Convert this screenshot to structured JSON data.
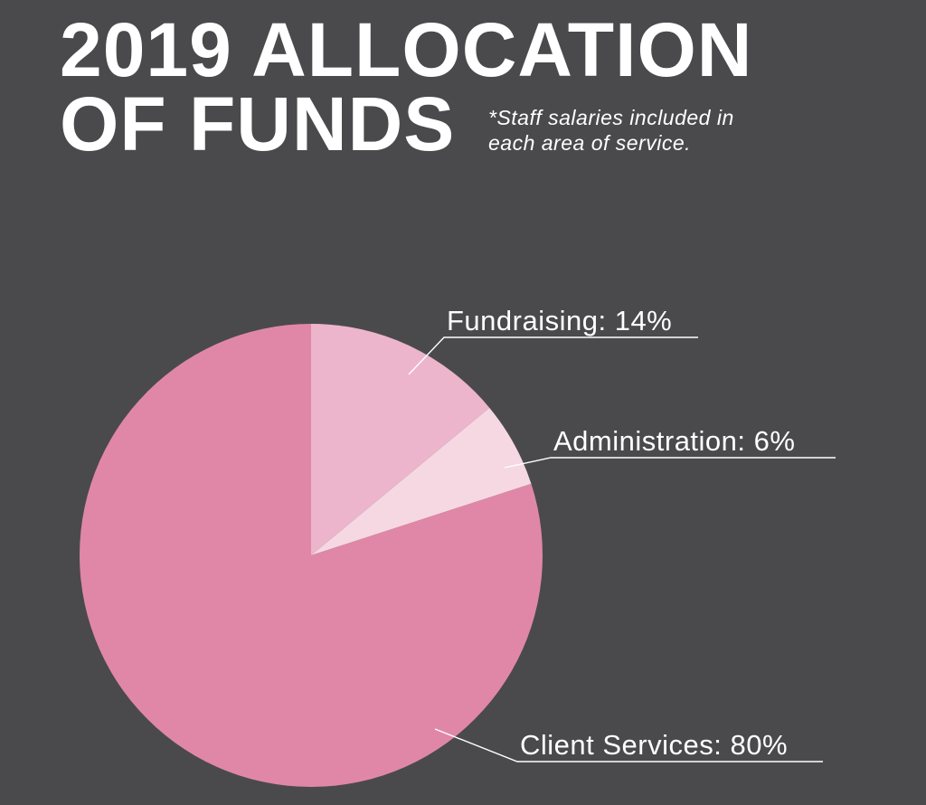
{
  "title": {
    "line1": "2019 ALLOCATION",
    "line2": "OF FUNDS"
  },
  "note": {
    "line1": "*Staff salaries included in",
    "line2": "each area of service."
  },
  "chart_data": {
    "type": "pie",
    "title": "2019 ALLOCATION OF FUNDS",
    "slices": [
      {
        "label": "Fundraising: 14%",
        "name": "Fundraising",
        "value": 14,
        "color": "#ecb5cb"
      },
      {
        "label": "Administration: 6%",
        "name": "Administration",
        "value": 6,
        "color": "#f6d8e2"
      },
      {
        "label": "Client Services: 80%",
        "name": "Client Services",
        "value": 80,
        "color": "#e087a8"
      }
    ],
    "start_angle": "12 o'clock",
    "direction": "clockwise",
    "legend": "callout labels"
  }
}
